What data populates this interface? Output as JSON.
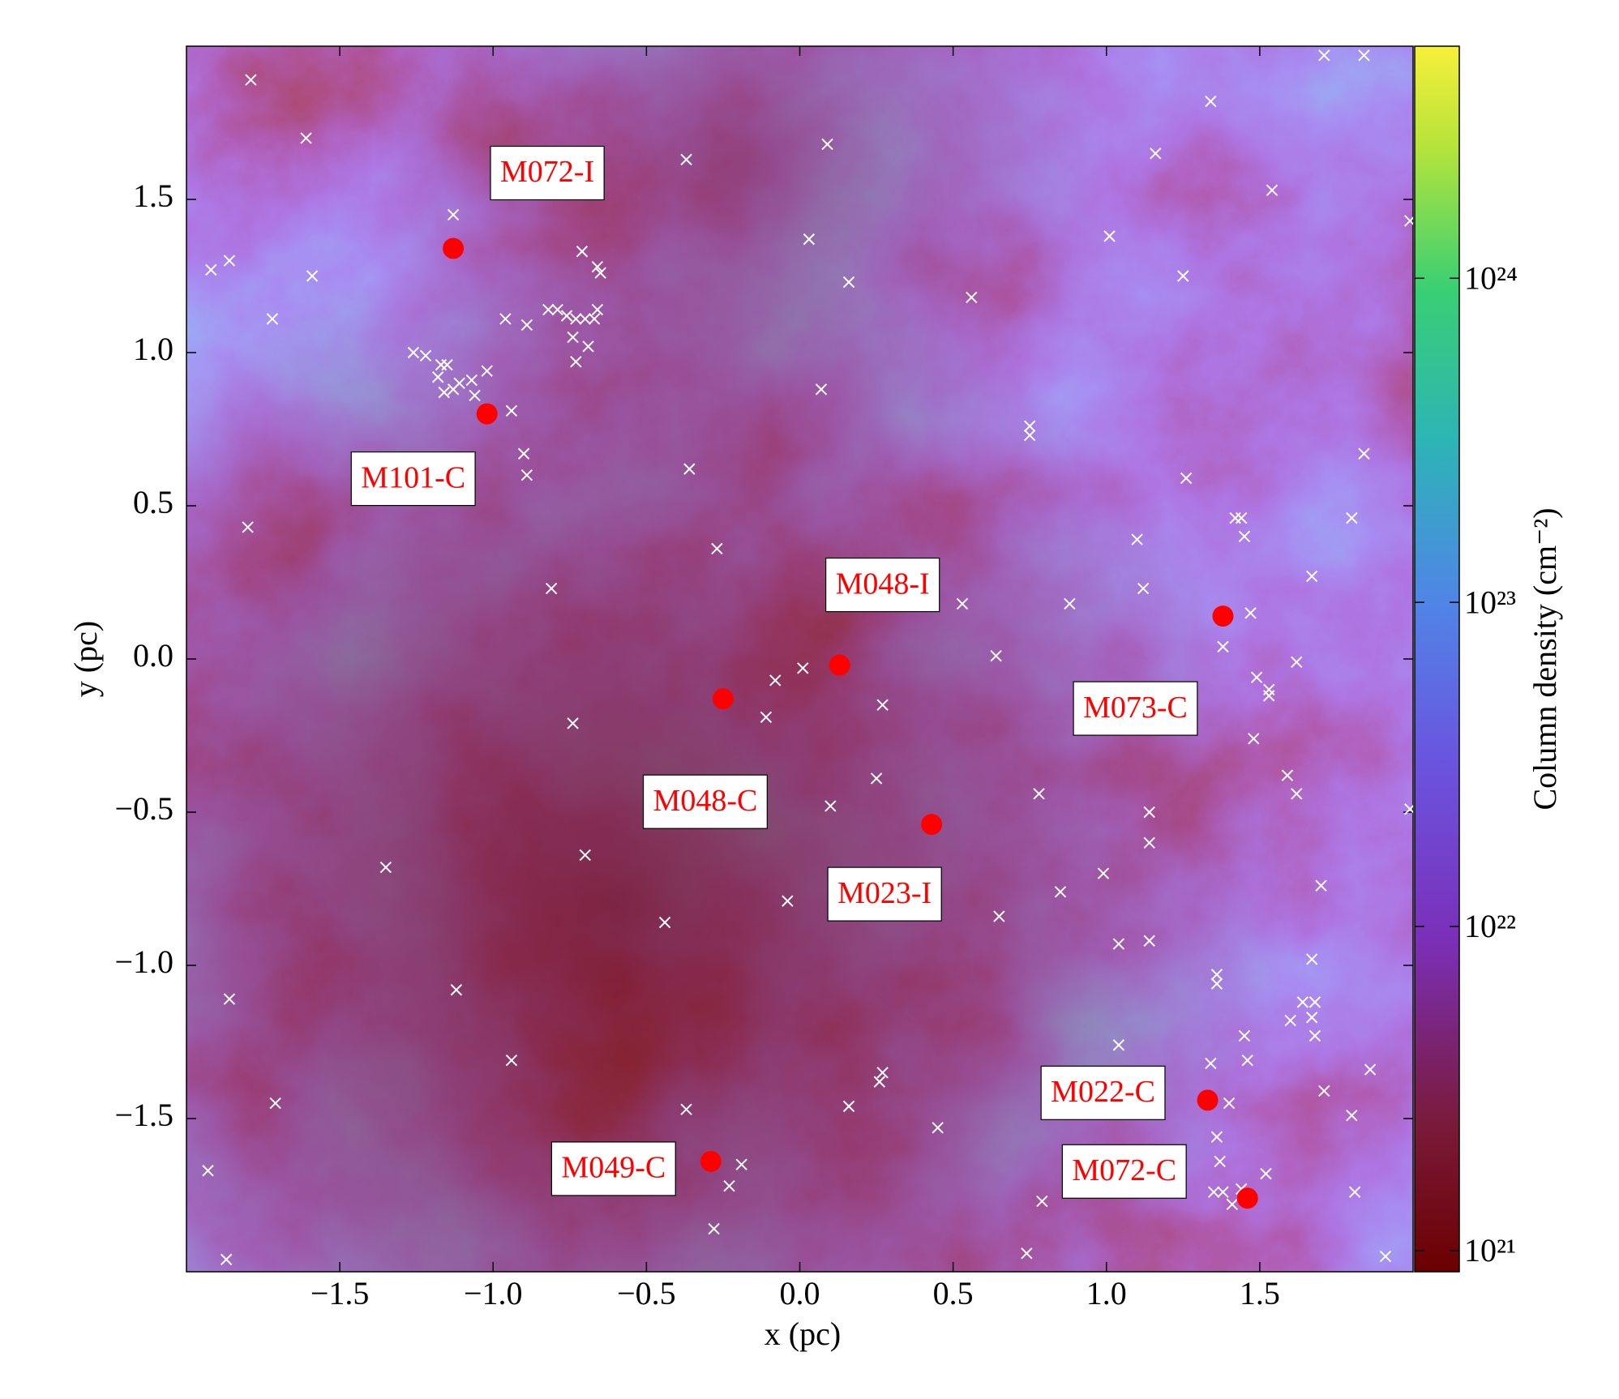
{
  "chart_data": {
    "type": "scatter",
    "xlabel": "x  (pc)",
    "ylabel": "y  (pc)",
    "xlim": [
      -2,
      2
    ],
    "ylim": [
      -2,
      2
    ],
    "xticks": [
      {
        "value": -1.5,
        "label": "−1.5"
      },
      {
        "value": -1.0,
        "label": "−1.0"
      },
      {
        "value": -0.5,
        "label": "−0.5"
      },
      {
        "value": 0,
        "label": "0.0"
      },
      0.5,
      {
        "value": 1.0,
        "label": "1.0"
      },
      1.5
    ],
    "yticks": [
      {
        "value": -1.5,
        "label": "−1.5"
      },
      {
        "value": -1.0,
        "label": "−1.0"
      },
      {
        "value": -0.5,
        "label": "−0.5"
      },
      {
        "value": 0,
        "label": "0.0"
      },
      0.5,
      {
        "value": 1.0,
        "label": "1.0"
      },
      1.5
    ],
    "colorbar": {
      "label": "Column density (cm⁻²)",
      "scale": "log",
      "lim": [
        8.6e+20,
        5.2e+24
      ],
      "ticks": [
        {
          "value": 1e+21,
          "label": "10²¹"
        },
        {
          "value": 1e+22,
          "label": "10²²"
        },
        {
          "value": 1e+23,
          "label": "10²³"
        },
        {
          "value": 1e+24,
          "label": "10²⁴"
        }
      ]
    },
    "series": [
      {
        "marker": "circle",
        "color": "#ff0000",
        "labels": [
          "M072-I",
          "M101-C",
          "M048-I",
          "M048-C",
          "M023-I",
          "M073-C",
          "M022-C",
          "M072-C",
          "M049-C"
        ],
        "x": [
          -1.13,
          -1.02,
          0.13,
          -0.25,
          0.43,
          1.38,
          1.33,
          1.46,
          -0.29
        ],
        "values": [
          1.34,
          0.8,
          -0.02,
          -0.13,
          -0.54,
          0.14,
          -1.44,
          -1.76,
          -1.64
        ]
      },
      {
        "marker": "x",
        "color": "#ffffff",
        "x": [
          -1.79,
          1.71,
          1.84,
          -1.61,
          -0.37,
          0.09,
          1.34,
          1.16,
          1.54,
          -1.13,
          1.99,
          -0.71,
          0.03,
          1.01,
          -1.92,
          -1.86,
          -1.59,
          -0.66,
          -0.65,
          1.25,
          0.16,
          -1.72,
          0.56,
          -0.96,
          -0.89,
          -0.82,
          -0.79,
          -0.76,
          -0.73,
          -0.7,
          -0.66,
          -0.67,
          -0.69,
          -0.74,
          -0.73,
          -1.26,
          -1.22,
          -1.17,
          -1.15,
          -1.18,
          -1.13,
          -1.11,
          -1.07,
          -1.06,
          -1.16,
          -1.02,
          -0.94,
          -0.9,
          -0.89,
          0.07,
          0.75,
          0.75,
          -0.36,
          -1.8,
          1.84,
          1.26,
          1.42,
          1.44,
          1.45,
          1.8,
          1.1,
          -0.27,
          1.67,
          -0.81,
          0.53,
          0.88,
          1.12,
          1.47,
          1.38,
          1.62,
          0.64,
          0.01,
          -0.08,
          1.49,
          1.53,
          1.53,
          0.27,
          -0.11,
          -0.74,
          1.48,
          0.25,
          1.59,
          1.62,
          0.78,
          0.1,
          1.14,
          1.99,
          1.14,
          -0.7,
          -1.35,
          0.99,
          0.85,
          1.7,
          -0.04,
          0.65,
          -0.44,
          1.04,
          1.14,
          1.67,
          1.36,
          1.36,
          -1.12,
          -1.86,
          1.64,
          1.68,
          1.67,
          1.6,
          1.68,
          1.45,
          1.04,
          -0.94,
          1.86,
          1.34,
          1.46,
          0.27,
          0.26,
          1.71,
          -1.71,
          1.4,
          -0.37,
          0.16,
          1.8,
          0.45,
          1.36,
          -1.93,
          -0.19,
          1.37,
          1.52,
          -0.23,
          1.35,
          1.38,
          1.44,
          1.41,
          1.81,
          0.79,
          -0.28,
          0.74,
          1.91,
          -1.87
        ],
        "values": [
          1.89,
          1.97,
          1.97,
          1.7,
          1.63,
          1.68,
          1.82,
          1.65,
          1.53,
          1.45,
          1.43,
          1.33,
          1.37,
          1.38,
          1.27,
          1.3,
          1.25,
          1.28,
          1.26,
          1.25,
          1.23,
          1.11,
          1.18,
          1.11,
          1.09,
          1.14,
          1.14,
          1.12,
          1.11,
          1.11,
          1.14,
          1.11,
          1.02,
          1.05,
          0.97,
          1.0,
          0.99,
          0.96,
          0.96,
          0.92,
          0.88,
          0.9,
          0.91,
          0.86,
          0.87,
          0.94,
          0.81,
          0.67,
          0.6,
          0.88,
          0.76,
          0.73,
          0.62,
          0.43,
          0.67,
          0.59,
          0.46,
          0.46,
          0.4,
          0.46,
          0.39,
          0.36,
          0.27,
          0.23,
          0.18,
          0.18,
          0.23,
          0.15,
          0.04,
          -0.01,
          0.01,
          -0.03,
          -0.07,
          -0.06,
          -0.1,
          -0.12,
          -0.15,
          -0.19,
          -0.21,
          -0.26,
          -0.39,
          -0.38,
          -0.44,
          -0.44,
          -0.48,
          -0.5,
          -0.49,
          -0.6,
          -0.64,
          -0.68,
          -0.7,
          -0.76,
          -0.74,
          -0.79,
          -0.84,
          -0.86,
          -0.93,
          -0.92,
          -0.98,
          -1.03,
          -1.06,
          -1.08,
          -1.11,
          -1.12,
          -1.12,
          -1.17,
          -1.18,
          -1.23,
          -1.23,
          -1.26,
          -1.31,
          -1.34,
          -1.32,
          -1.31,
          -1.35,
          -1.38,
          -1.41,
          -1.45,
          -1.45,
          -1.47,
          -1.46,
          -1.49,
          -1.53,
          -1.56,
          -1.67,
          -1.65,
          -1.64,
          -1.68,
          -1.72,
          -1.74,
          -1.74,
          -1.73,
          -1.78,
          -1.74,
          -1.77,
          -1.86,
          -1.94,
          -1.95,
          -1.96
        ]
      }
    ]
  }
}
